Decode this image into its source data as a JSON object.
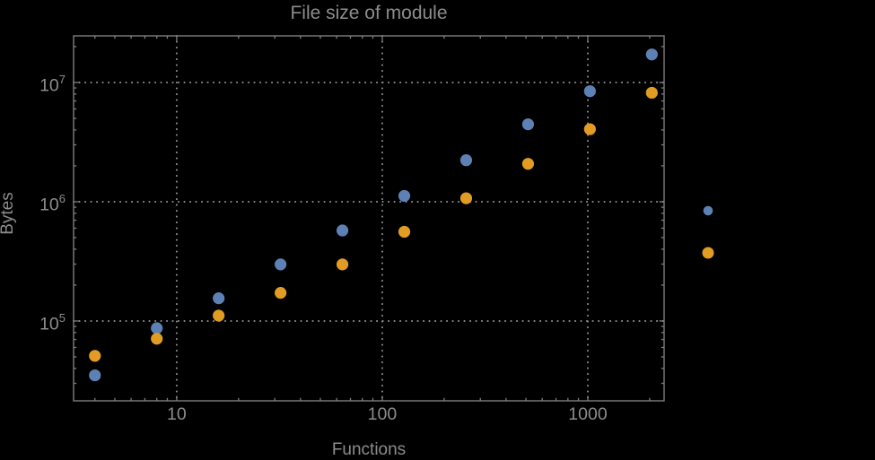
{
  "page": {
    "background": "#000000"
  },
  "chart_data": {
    "type": "scatter",
    "title": "File size of module",
    "xlabel": "Functions",
    "ylabel": "Bytes",
    "xscale": "log",
    "yscale": "log",
    "xlim": [
      3.15,
      2350
    ],
    "ylim": [
      21400,
      24600000
    ],
    "grid": "dotted-major",
    "x": [
      4,
      8,
      16,
      32,
      64,
      128,
      256,
      512,
      1024,
      2048
    ],
    "series": [
      {
        "name": "series-1-blue",
        "color": "#5e81b5",
        "values": [
          35000,
          87000,
          155000,
          298000,
          574000,
          1120000,
          2230000,
          4460000,
          8450000,
          17200000
        ]
      },
      {
        "name": "series-2-orange",
        "color": "#e19c24",
        "values": [
          51000,
          71000,
          111000,
          172000,
          298000,
          560000,
          1070000,
          2080000,
          4060000,
          8200000
        ]
      }
    ],
    "x_ticks": [
      10,
      100,
      1000
    ],
    "y_tick_exponents": [
      5,
      6,
      7
    ],
    "legend": {
      "position": "outside-right",
      "labels_visible": false,
      "marker_colors": [
        "#5e81b5",
        "#e19c24"
      ]
    },
    "frame_color": "#7d7d7d",
    "label_color": "#8c8c8c",
    "gridline_color": "#8f8f8f",
    "background": "#000000"
  }
}
